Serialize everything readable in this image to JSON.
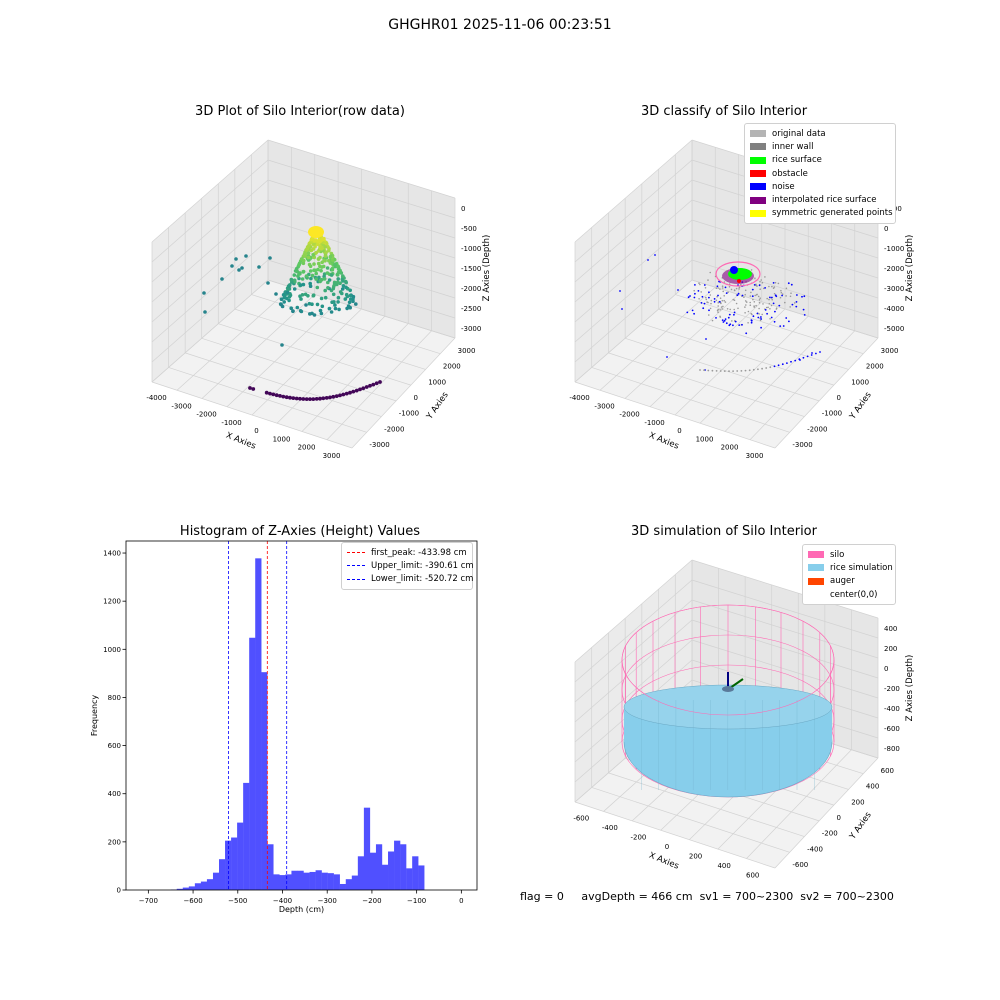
{
  "page_title": "GHGHR01 2025-11-06 00:23:51",
  "status": {
    "flag": "flag = 0",
    "avg_depth": "avgDepth = 466 cm",
    "sv1": "sv1 = 700~2300",
    "sv2": "sv2 = 700~2300"
  },
  "chart_data": [
    {
      "type": "scatter",
      "title": "3D Plot of Silo Interior(row data)",
      "xlabel": "X Axies",
      "ylabel": "Y Axies",
      "zlabel": "Z Axies (Depth)",
      "x_ticks": [
        "-4000",
        "-3000",
        "-2000",
        "-1000",
        "0",
        "1000",
        "2000",
        "3000"
      ],
      "y_ticks": [
        "-3000",
        "-2000",
        "-1000",
        "0",
        "1000",
        "2000",
        "3000"
      ],
      "z_ticks": [
        "0",
        "-500",
        "-1000",
        "-1500",
        "-2000",
        "-2500",
        "-3000"
      ],
      "colormap": "viridis"
    },
    {
      "type": "scatter",
      "title": "3D classify of Silo Interior",
      "xlabel": "X Axies",
      "ylabel": "Y Axies",
      "zlabel": "Z Axies (Depth)",
      "x_ticks": [
        "-4000",
        "-3000",
        "-2000",
        "-1000",
        "0",
        "1000",
        "2000",
        "3000"
      ],
      "y_ticks": [
        "-3000",
        "-2000",
        "-1000",
        "0",
        "1000",
        "2000",
        "3000"
      ],
      "z_ticks": [
        "1000",
        "0",
        "-1000",
        "-2000",
        "-3000",
        "-4000",
        "-5000"
      ],
      "legend": [
        {
          "label": "original data",
          "color": "#b4b4b4"
        },
        {
          "label": "inner wall",
          "color": "#808080"
        },
        {
          "label": "rice surface",
          "color": "#00ff00"
        },
        {
          "label": "obstacle",
          "color": "#ff0000"
        },
        {
          "label": "noise",
          "color": "#0000ff"
        },
        {
          "label": "interpolated rice surface",
          "color": "#800080"
        },
        {
          "label": "symmetric generated points",
          "color": "#ffff00"
        }
      ]
    },
    {
      "type": "bar",
      "title": "Histogram of Z-Axies (Height) Values",
      "xlabel": "Depth (cm)",
      "ylabel": "Frequency",
      "xlim": [
        -750,
        35
      ],
      "ylim": [
        0,
        1450
      ],
      "x_ticks": [
        -700,
        -600,
        -500,
        -400,
        -300,
        -200,
        -100,
        0
      ],
      "y_ticks": [
        0,
        200,
        400,
        600,
        800,
        1000,
        1200,
        1400
      ],
      "bar_color": "#5050ff",
      "bin_width": 13.5,
      "bin_starts": [
        -650,
        -636.5,
        -623,
        -609.5,
        -596,
        -582.5,
        -569,
        -555.5,
        -542,
        -528.5,
        -515,
        -501.5,
        -488,
        -474.5,
        -461,
        -447.5,
        -434,
        -420.5,
        -407,
        -393.5,
        -380,
        -366.5,
        -353,
        -339.5,
        -326,
        -312.5,
        -299,
        -285.5,
        -272,
        -258.5,
        -245,
        -231.5,
        -218,
        -204.5,
        -191,
        -177.5,
        -164,
        -150.5,
        -137,
        -123.5,
        -110,
        -96.5,
        -83,
        -69.5,
        -56,
        -42.5,
        -29,
        -15.5
      ],
      "values": [
        2,
        5,
        10,
        15,
        28,
        35,
        45,
        72,
        128,
        205,
        218,
        280,
        445,
        1048,
        1378,
        905,
        190,
        65,
        62,
        65,
        80,
        80,
        72,
        75,
        82,
        72,
        70,
        65,
        25,
        45,
        60,
        140,
        342,
        155,
        190,
        105,
        160,
        205,
        190,
        90,
        140,
        102,
        0,
        0,
        0,
        0,
        0,
        0
      ],
      "reference_lines": [
        {
          "label": "first_peak: -433.98 cm",
          "x": -433.98,
          "color": "#ff0000"
        },
        {
          "label": "Upper_limit: -390.61 cm",
          "x": -390.61,
          "color": "#0000ff"
        },
        {
          "label": "Lower_limit: -520.72 cm",
          "x": -520.72,
          "color": "#0000ff"
        }
      ]
    },
    {
      "type": "scatter",
      "title": "3D simulation of Silo Interior",
      "xlabel": "X Axies",
      "ylabel": "Y Axies",
      "zlabel": "Z Axies (Depth)",
      "x_ticks": [
        "-600",
        "-400",
        "-200",
        "0",
        "200",
        "400",
        "600"
      ],
      "y_ticks": [
        "-600",
        "-400",
        "-200",
        "0",
        "200",
        "400",
        "600"
      ],
      "z_ticks": [
        "400",
        "200",
        "0",
        "-200",
        "-400",
        "-600",
        "-800"
      ],
      "legend": [
        {
          "label": "silo",
          "color": "#ff69b4"
        },
        {
          "label": "rice simulation",
          "color": "#87ceeb"
        },
        {
          "label": "auger",
          "color": "#ff4500"
        },
        {
          "label": "center(0,0)",
          "color": "#ffffff"
        }
      ]
    }
  ]
}
